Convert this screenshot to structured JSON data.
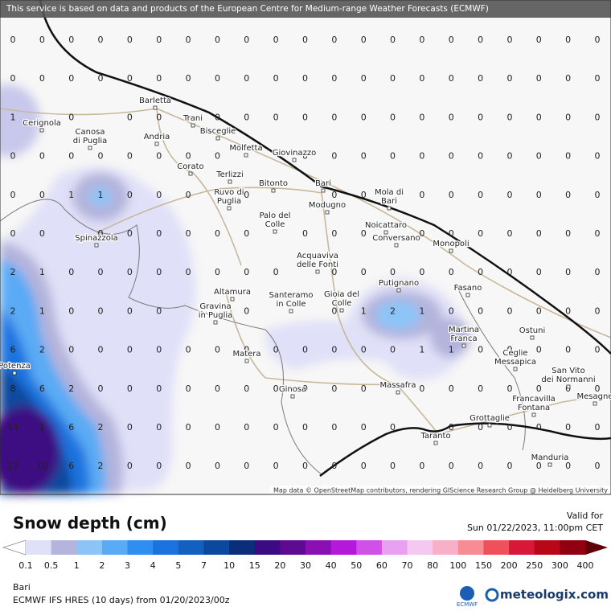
{
  "banner": "This service is based on data and products of the European Centre for Medium-range Weather Forecasts (ECMWF)",
  "attribution": "Map data © OpenStreetMap contributors, rendering GIScience Research Group @ Heidelberg University",
  "grid": {
    "rows": [
      [
        0,
        0,
        0,
        0,
        0,
        0,
        0,
        0,
        0,
        0,
        0,
        0,
        0,
        0,
        0,
        0,
        0,
        0,
        0,
        0,
        0
      ],
      [
        0,
        0,
        0,
        0,
        0,
        0,
        0,
        0,
        0,
        0,
        0,
        0,
        0,
        0,
        0,
        0,
        0,
        0,
        0,
        0,
        0
      ],
      [
        1,
        null,
        0,
        null,
        0,
        0,
        null,
        0,
        0,
        0,
        0,
        0,
        0,
        0,
        0,
        0,
        0,
        0,
        0,
        0,
        0
      ],
      [
        0,
        0,
        0,
        0,
        0,
        0,
        0,
        0,
        null,
        null,
        0,
        0,
        0,
        0,
        0,
        0,
        0,
        0,
        0,
        0,
        0
      ],
      [
        0,
        0,
        1,
        1,
        0,
        0,
        0,
        null,
        0,
        null,
        null,
        0,
        0,
        null,
        0,
        0,
        0,
        0,
        0,
        0,
        0
      ],
      [
        0,
        0,
        null,
        0,
        0,
        0,
        0,
        0,
        0,
        null,
        0,
        0,
        0,
        null,
        0,
        0,
        0,
        0,
        0,
        0,
        0
      ],
      [
        2,
        1,
        0,
        0,
        0,
        0,
        0,
        0,
        0,
        0,
        null,
        0,
        0,
        0,
        0,
        0,
        0,
        0,
        0,
        0,
        0
      ],
      [
        2,
        1,
        0,
        0,
        0,
        0,
        null,
        null,
        0,
        null,
        null,
        0,
        1,
        2,
        1,
        0,
        0,
        0,
        0,
        0,
        0
      ],
      [
        6,
        2,
        0,
        0,
        0,
        0,
        0,
        0,
        0,
        0,
        0,
        0,
        0,
        0,
        1,
        1,
        0,
        0,
        0,
        0,
        0
      ],
      [
        8,
        6,
        2,
        0,
        0,
        0,
        0,
        0,
        0,
        0,
        0,
        0,
        0,
        null,
        0,
        0,
        0,
        0,
        0,
        0,
        0
      ],
      [
        14,
        1,
        6,
        2,
        0,
        0,
        0,
        0,
        0,
        0,
        0,
        0,
        0,
        0,
        null,
        0,
        0,
        0,
        0,
        0,
        0
      ],
      [
        13,
        10,
        6,
        2,
        0,
        0,
        0,
        0,
        0,
        0,
        0,
        0,
        0,
        0,
        0,
        0,
        0,
        0,
        0,
        0,
        0
      ]
    ]
  },
  "cities": [
    {
      "lines": [
        "Barletta"
      ]
    },
    {
      "lines": [
        "Trani"
      ]
    },
    {
      "lines": [
        "Cerignola"
      ]
    },
    {
      "lines": [
        "Canosa",
        "di Puglia"
      ]
    },
    {
      "lines": [
        "Bisceglie"
      ]
    },
    {
      "lines": [
        "Andria"
      ]
    },
    {
      "lines": [
        "Molfetta"
      ]
    },
    {
      "lines": [
        "Giovinazzo"
      ]
    },
    {
      "lines": [
        "Corato"
      ]
    },
    {
      "lines": [
        "Terlizzi"
      ]
    },
    {
      "lines": [
        "Bitonto"
      ]
    },
    {
      "lines": [
        "Bari"
      ]
    },
    {
      "lines": [
        "Ruvo di",
        "Puglia"
      ]
    },
    {
      "lines": [
        "Mola di",
        "Bari"
      ]
    },
    {
      "lines": [
        "Modugno"
      ]
    },
    {
      "lines": [
        "Noicattaro"
      ]
    },
    {
      "lines": [
        "Palo del",
        "Colle"
      ]
    },
    {
      "lines": [
        "Spinazzola"
      ]
    },
    {
      "lines": [
        "Conversano"
      ]
    },
    {
      "lines": [
        "Monopoli"
      ]
    },
    {
      "lines": [
        "Acquaviva",
        "delle Fonti"
      ]
    },
    {
      "lines": [
        "Putignano"
      ]
    },
    {
      "lines": [
        "Fasano"
      ]
    },
    {
      "lines": [
        "Altamura"
      ]
    },
    {
      "lines": [
        "Santeramo",
        "in Colle"
      ]
    },
    {
      "lines": [
        "Gioia del",
        "Colle"
      ]
    },
    {
      "lines": [
        "Gravina",
        "in Puglia"
      ]
    },
    {
      "lines": [
        "Martina",
        "Franca"
      ]
    },
    {
      "lines": [
        "Ostuni"
      ]
    },
    {
      "lines": [
        "Matera"
      ]
    },
    {
      "lines": [
        "Ceglie",
        "Messapica"
      ]
    },
    {
      "lines": [
        "San Vito",
        "dei Normanni"
      ]
    },
    {
      "lines": [
        "Potenza"
      ]
    },
    {
      "lines": [
        "Massafra"
      ]
    },
    {
      "lines": [
        "Ginosa"
      ]
    },
    {
      "lines": [
        "Mesagne"
      ]
    },
    {
      "lines": [
        "Francavilla",
        "Fontana"
      ]
    },
    {
      "lines": [
        "Grottaglie"
      ]
    },
    {
      "lines": [
        "Taranto"
      ]
    },
    {
      "lines": [
        "Manduria"
      ]
    }
  ],
  "legend": {
    "title": "Snow depth (cm)",
    "labels": [
      0.1,
      0.5,
      1,
      2,
      3,
      4,
      5,
      7,
      10,
      15,
      20,
      30,
      40,
      50,
      60,
      70,
      80,
      100,
      150,
      200,
      250,
      300,
      400
    ],
    "colors": [
      "#e0e0f8",
      "#b4b4dc",
      "#8cc4f8",
      "#5aaaf5",
      "#2f8ff0",
      "#1a73de",
      "#1460c0",
      "#0c489e",
      "#0a2e7a",
      "#3c0a82",
      "#5e0a92",
      "#8a10b4",
      "#b418d8",
      "#d050e8",
      "#e8a0f0",
      "#f4c8f0",
      "#f8b0c8",
      "#f88c94",
      "#f0505c",
      "#d81838",
      "#b80818",
      "#900010"
    ]
  },
  "valid": {
    "label": "Valid for",
    "time": "Sun 01/22/2023, 11:00pm CET"
  },
  "footer": {
    "location": "Bari",
    "model": "ECMWF IFS HRES (10 days) from 01/20/2023/00z",
    "ecmwf": "ECMWF",
    "brand": "meteologix.com"
  }
}
